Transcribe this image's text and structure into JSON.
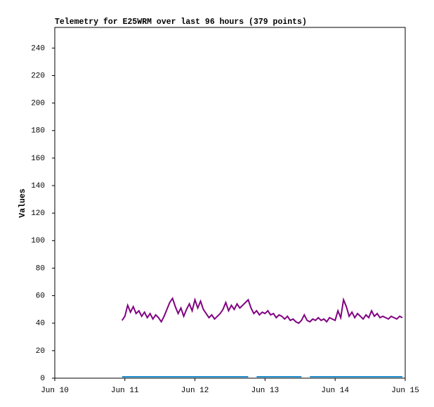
{
  "chart_data": {
    "type": "line",
    "title": "Telemetry for E25WRM over last 96 hours (379 points)",
    "y_label": "Values",
    "x": [
      10.96,
      11,
      11.04,
      11.08,
      11.12,
      11.16,
      11.2,
      11.24,
      11.28,
      11.32,
      11.36,
      11.4,
      11.44,
      11.48,
      11.52,
      11.56,
      11.6,
      11.64,
      11.68,
      11.72,
      11.76,
      11.8,
      11.84,
      11.88,
      11.92,
      11.96,
      12,
      12.04,
      12.08,
      12.12,
      12.16,
      12.2,
      12.24,
      12.28,
      12.32,
      12.36,
      12.4,
      12.44,
      12.48,
      12.52,
      12.56,
      12.6,
      12.64,
      12.68,
      12.72,
      12.76,
      12.8,
      12.84,
      12.88,
      12.92,
      12.96,
      13,
      13.04,
      13.08,
      13.12,
      13.16,
      13.2,
      13.24,
      13.28,
      13.32,
      13.36,
      13.4,
      13.44,
      13.48,
      13.52,
      13.56,
      13.6,
      13.64,
      13.68,
      13.72,
      13.76,
      13.8,
      13.84,
      13.88,
      13.92,
      13.96,
      14,
      14.04,
      14.08,
      14.12,
      14.16,
      14.2,
      14.24,
      14.28,
      14.32,
      14.36,
      14.4,
      14.44,
      14.48,
      14.52,
      14.56,
      14.6,
      14.64,
      14.68,
      14.72,
      14.76,
      14.8,
      14.84,
      14.88,
      14.92,
      14.96
    ],
    "series": [
      {
        "color": "#800080",
        "values": [
          42,
          45,
          53,
          48,
          52,
          47,
          49,
          45,
          48,
          44,
          47,
          43,
          46,
          44,
          41,
          45,
          50,
          55,
          58,
          52,
          47,
          51,
          45,
          50,
          54,
          49,
          57,
          51,
          56,
          50,
          47,
          44,
          46,
          43,
          45,
          47,
          50,
          55,
          49,
          53,
          50,
          54,
          51,
          53,
          55,
          57,
          51,
          47,
          49,
          46,
          48,
          47,
          49,
          46,
          47,
          44,
          46,
          45,
          43,
          45,
          42,
          43,
          41,
          40,
          42,
          46,
          42,
          41,
          43,
          42,
          44,
          42,
          43,
          41,
          44,
          43,
          42,
          49,
          44,
          57,
          52,
          45,
          48,
          44,
          47,
          45,
          43,
          46,
          44,
          49,
          45,
          47,
          44,
          45,
          44,
          43,
          45,
          44,
          43,
          45,
          44
        ]
      },
      {
        "color": "#1f8fd0",
        "values": [
          1,
          1,
          1,
          1,
          1,
          1,
          1,
          1,
          1,
          1,
          1,
          1,
          1,
          1,
          1,
          1,
          1,
          1,
          1,
          1,
          1,
          1,
          1,
          1,
          1,
          1,
          1,
          1,
          1,
          1,
          1,
          1,
          1,
          1,
          1,
          1,
          1,
          1,
          1,
          1,
          1,
          1,
          1,
          1,
          1,
          1,
          null,
          null,
          1,
          1,
          1,
          1,
          1,
          1,
          1,
          1,
          1,
          1,
          1,
          1,
          1,
          1,
          1,
          1,
          1,
          null,
          null,
          1,
          1,
          1,
          1,
          1,
          1,
          1,
          1,
          1,
          1,
          1,
          1,
          1,
          1,
          1,
          1,
          1,
          1,
          1,
          1,
          1,
          1,
          1,
          1,
          1,
          1,
          1,
          1,
          1,
          1,
          1,
          1,
          1,
          1
        ]
      }
    ],
    "xlim": [
      10,
      15
    ],
    "xticks": [
      {
        "value": 10,
        "label": "Jun 10"
      },
      {
        "value": 11,
        "label": "Jun 11"
      },
      {
        "value": 12,
        "label": "Jun 12"
      },
      {
        "value": 13,
        "label": "Jun 13"
      },
      {
        "value": 14,
        "label": "Jun 14"
      },
      {
        "value": 15,
        "label": "Jun 15"
      }
    ],
    "ylim": [
      0,
      255
    ],
    "yticks": [
      0,
      20,
      40,
      60,
      80,
      100,
      120,
      140,
      160,
      180,
      200,
      220,
      240
    ]
  }
}
